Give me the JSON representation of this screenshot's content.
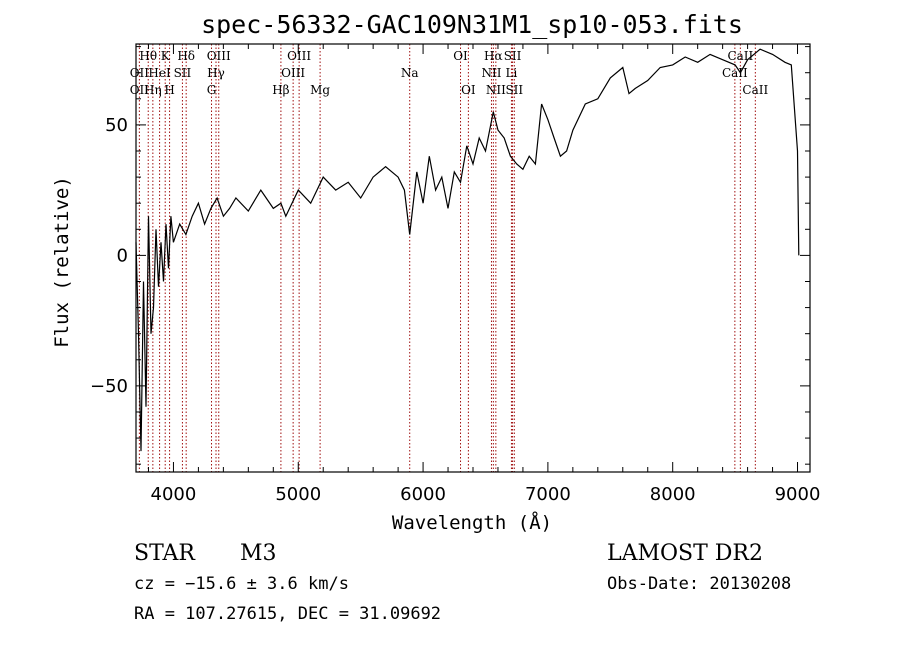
{
  "chart_data": {
    "type": "line",
    "title": "spec-56332-GAC109N31M1_sp10-053.fits",
    "xlabel": "Wavelength (Å)",
    "ylabel": "Flux (relative)",
    "xlim": [
      3700,
      9100
    ],
    "ylim": [
      -83,
      81
    ],
    "xticks": [
      4000,
      5000,
      6000,
      7000,
      8000,
      9000
    ],
    "yticks": [
      -50,
      0,
      50
    ],
    "grid": false,
    "series": [
      {
        "x": [
          3700,
          3720,
          3740,
          3760,
          3780,
          3800,
          3820,
          3840,
          3860,
          3880,
          3900,
          3920,
          3940,
          3960,
          3980,
          4000,
          4050,
          4100,
          4150,
          4200,
          4250,
          4300,
          4350,
          4400,
          4450,
          4500,
          4600,
          4700,
          4800,
          4861,
          4900,
          5000,
          5100,
          5200,
          5300,
          5400,
          5500,
          5600,
          5700,
          5800,
          5850,
          5893,
          5950,
          6000,
          6050,
          6100,
          6150,
          6200,
          6250,
          6300,
          6350,
          6400,
          6450,
          6500,
          6563,
          6600,
          6650,
          6700,
          6750,
          6800,
          6850,
          6900,
          6950,
          7000,
          7050,
          7100,
          7150,
          7200,
          7300,
          7400,
          7500,
          7600,
          7650,
          7700,
          7800,
          7900,
          8000,
          8100,
          8200,
          8300,
          8400,
          8500,
          8542,
          8600,
          8700,
          8800,
          8900,
          8950,
          9000,
          9010
        ],
        "y": [
          5,
          -30,
          -75,
          -10,
          -58,
          15,
          -30,
          -20,
          10,
          -12,
          5,
          -10,
          12,
          -5,
          15,
          5,
          12,
          8,
          15,
          20,
          12,
          18,
          22,
          15,
          18,
          22,
          17,
          25,
          18,
          20,
          15,
          25,
          20,
          30,
          25,
          28,
          22,
          30,
          34,
          30,
          25,
          8,
          32,
          20,
          38,
          25,
          30,
          18,
          32,
          28,
          42,
          35,
          45,
          40,
          55,
          48,
          45,
          38,
          35,
          33,
          38,
          35,
          58,
          52,
          45,
          38,
          40,
          48,
          58,
          60,
          68,
          72,
          62,
          64,
          67,
          72,
          73,
          76,
          74,
          77,
          75,
          73,
          70,
          75,
          79,
          77,
          74,
          73,
          40,
          0
        ]
      }
    ],
    "line_markers": [
      {
        "label": "Hθ",
        "wl": 3798,
        "row": 0
      },
      {
        "label": "OII",
        "wl": 3727,
        "row": 1
      },
      {
        "label": "OII",
        "wl": 3727,
        "row": 2
      },
      {
        "label": "Hη",
        "wl": 3835,
        "row": 2
      },
      {
        "label": "K",
        "wl": 3934,
        "row": 0
      },
      {
        "label": "HeI",
        "wl": 3889,
        "row": 1
      },
      {
        "label": "H",
        "wl": 3969,
        "row": 2
      },
      {
        "label": "Hδ",
        "wl": 4102,
        "row": 0
      },
      {
        "label": "SII",
        "wl": 4072,
        "row": 1
      },
      {
        "label": "OIII",
        "wl": 4363,
        "row": 0
      },
      {
        "label": "Hγ",
        "wl": 4341,
        "row": 1
      },
      {
        "label": "G",
        "wl": 4305,
        "row": 2
      },
      {
        "label": "Hβ",
        "wl": 4861,
        "row": 2
      },
      {
        "label": "OIII",
        "wl": 5007,
        "row": 0
      },
      {
        "label": "OIII",
        "wl": 4959,
        "row": 1
      },
      {
        "label": "Mg",
        "wl": 5175,
        "row": 2
      },
      {
        "label": "Na",
        "wl": 5893,
        "row": 1
      },
      {
        "label": "OI",
        "wl": 6300,
        "row": 0
      },
      {
        "label": "OI",
        "wl": 6363,
        "row": 2
      },
      {
        "label": "Hα",
        "wl": 6563,
        "row": 0
      },
      {
        "label": "SII",
        "wl": 6717,
        "row": 0
      },
      {
        "label": "NII",
        "wl": 6548,
        "row": 1
      },
      {
        "label": "Li",
        "wl": 6708,
        "row": 1
      },
      {
        "label": "NII",
        "wl": 6583,
        "row": 2
      },
      {
        "label": "SII",
        "wl": 6731,
        "row": 2
      },
      {
        "label": "CaII",
        "wl": 8542,
        "row": 0
      },
      {
        "label": "CaII",
        "wl": 8498,
        "row": 1
      },
      {
        "label": "CaII",
        "wl": 8662,
        "row": 2
      }
    ]
  },
  "info": {
    "class": "STAR",
    "subclass": "M3",
    "cz": "cz = −15.6 ± 3.6 km/s",
    "coords": "RA = 107.27615, DEC =  31.09692",
    "survey": "LAMOST DR2",
    "obs_date": "Obs-Date: 20130208"
  },
  "colors": {
    "marker": "#a01010",
    "spectrum": "#000000"
  }
}
